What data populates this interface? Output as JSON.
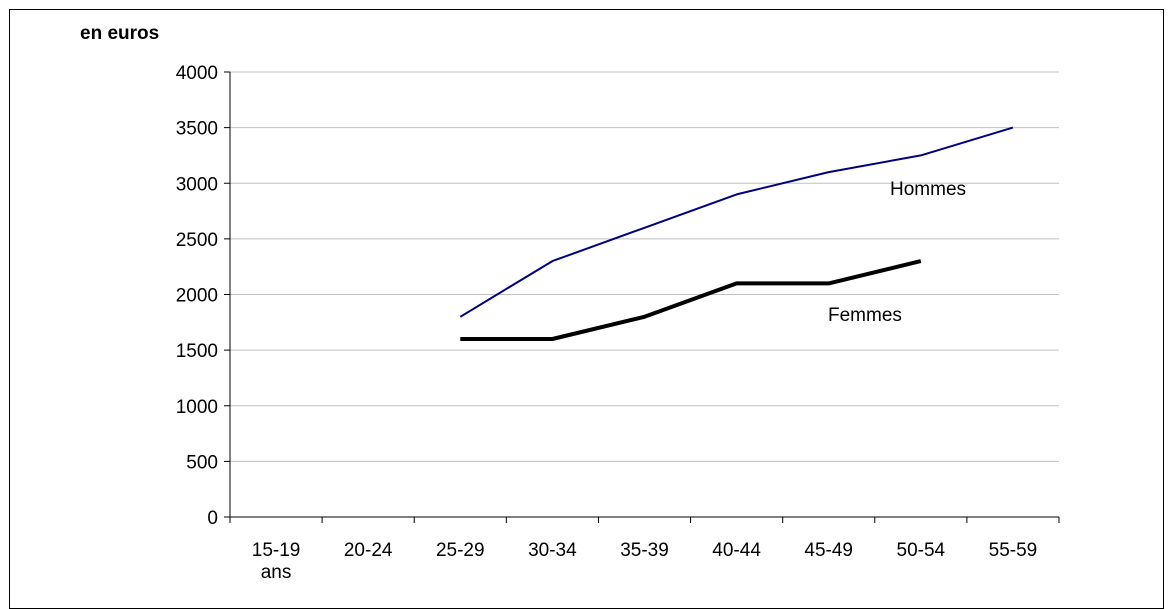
{
  "chart_data": {
    "type": "line",
    "unit_label": "en euros",
    "categories": [
      "15-19 ans",
      "20-24",
      "25-29",
      "30-34",
      "35-39",
      "40-44",
      "45-49",
      "50-54",
      "55-59"
    ],
    "category_label_lines": [
      [
        "15-19",
        "ans"
      ],
      [
        "20-24"
      ],
      [
        "25-29"
      ],
      [
        "30-34"
      ],
      [
        "35-39"
      ],
      [
        "40-44"
      ],
      [
        "45-49"
      ],
      [
        "50-54"
      ],
      [
        "55-59"
      ]
    ],
    "ylim": [
      0,
      4000
    ],
    "yticks": [
      0,
      500,
      1000,
      1500,
      2000,
      2500,
      3000,
      3500,
      4000
    ],
    "grid": true,
    "legend": "none",
    "series": [
      {
        "name": "Hommes",
        "color": "#000080",
        "values": [
          null,
          null,
          1800,
          2300,
          2600,
          2900,
          3100,
          3250,
          3500
        ]
      },
      {
        "name": "Femmes",
        "color": "#000000",
        "values": [
          null,
          null,
          1600,
          1600,
          1800,
          2100,
          2100,
          2300,
          null
        ]
      }
    ]
  }
}
